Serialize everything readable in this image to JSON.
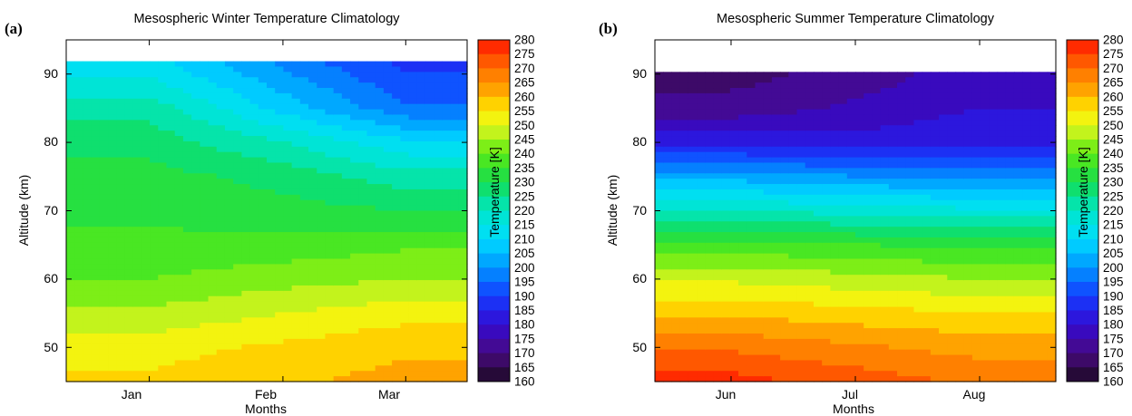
{
  "panels": [
    {
      "label": "(a)",
      "title": "Mesospheric Winter Temperature Climatology",
      "xlabel": "Months",
      "ylabel": "Altitude (km)",
      "xticks": [
        "Jan",
        "Feb",
        "Mar"
      ],
      "yticks": [
        "50",
        "60",
        "70",
        "80",
        "90"
      ],
      "colorbar_label": "Temperature [K]"
    },
    {
      "label": "(b)",
      "title": "Mesospheric Summer Temperature Climatology",
      "xlabel": "Months",
      "ylabel": "Altitude (km)",
      "xticks": [
        "Jun",
        "Jul",
        "Aug"
      ],
      "yticks": [
        "50",
        "60",
        "70",
        "80",
        "90"
      ],
      "colorbar_label": "Temperature [K]"
    }
  ],
  "colorbar_ticks": [
    "280",
    "275",
    "270",
    "265",
    "260",
    "255",
    "250",
    "245",
    "240",
    "235",
    "230",
    "225",
    "220",
    "215",
    "210",
    "205",
    "200",
    "195",
    "190",
    "185",
    "180",
    "175",
    "170",
    "165",
    "160"
  ],
  "chart_data": [
    {
      "type": "heatmap",
      "title": "Mesospheric Winter Temperature Climatology",
      "xlabel": "Months",
      "ylabel": "Altitude (km)",
      "x_categories": [
        "Jan",
        "Feb",
        "Mar"
      ],
      "x_days": [
        -2,
        35,
        69
      ],
      "x_range_days": [
        -25,
        86
      ],
      "ylim": [
        45,
        95
      ],
      "y": [
        45,
        50,
        55,
        60,
        65,
        70,
        75,
        80,
        85,
        90,
        92
      ],
      "z": [
        [
          256,
          259,
          262
        ],
        [
          253,
          256,
          259
        ],
        [
          246,
          250,
          253
        ],
        [
          240,
          243,
          245
        ],
        [
          236,
          237,
          239
        ],
        [
          234,
          232,
          230
        ],
        [
          232,
          228,
          222
        ],
        [
          228,
          220,
          211
        ],
        [
          223,
          208,
          196
        ],
        [
          214,
          201,
          190
        ],
        [
          212,
          198,
          188
        ]
      ],
      "colorbar": {
        "label": "Temperature [K]",
        "min": 160,
        "max": 280,
        "step": 5
      }
    },
    {
      "type": "heatmap",
      "title": "Mesospheric Summer Temperature Climatology",
      "xlabel": "Months",
      "ylabel": "Altitude (km)",
      "x_categories": [
        "Jun",
        "Jul",
        "Aug"
      ],
      "x_days": [
        -4,
        27,
        58
      ],
      "x_range_days": [
        -23,
        77
      ],
      "ylim": [
        45,
        95
      ],
      "y": [
        45,
        50,
        55,
        60,
        65,
        70,
        75,
        80,
        85,
        90
      ],
      "z": [
        [
          277,
          273,
          269
        ],
        [
          269,
          266,
          263
        ],
        [
          259,
          257,
          255
        ],
        [
          249,
          247,
          245
        ],
        [
          237,
          235,
          234
        ],
        [
          220,
          218,
          216
        ],
        [
          203,
          200,
          199
        ],
        [
          183,
          182,
          184
        ],
        [
          172,
          176,
          180
        ],
        [
          168,
          172,
          178
        ]
      ],
      "colorbar": {
        "label": "Temperature [K]",
        "min": 160,
        "max": 280,
        "step": 5
      }
    }
  ]
}
